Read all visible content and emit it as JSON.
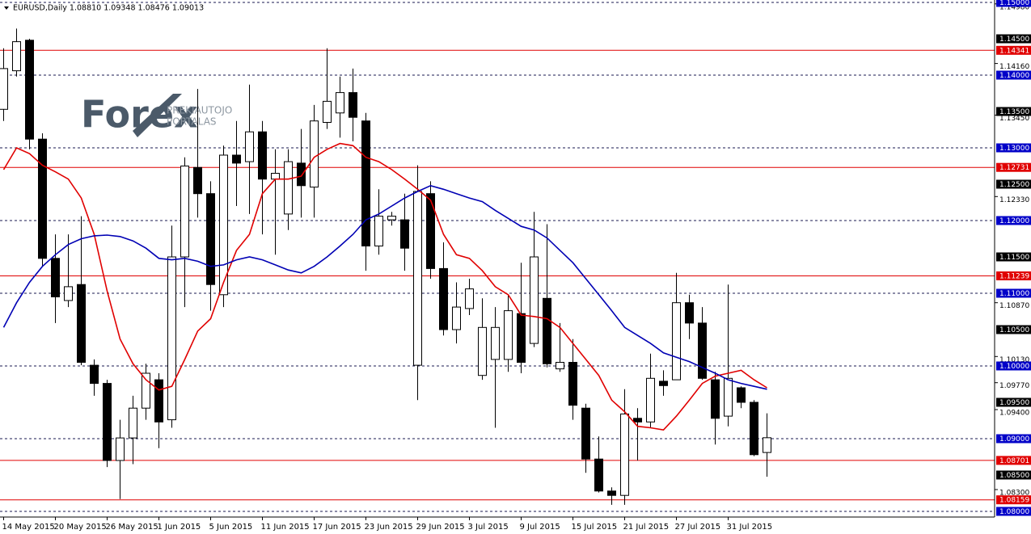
{
  "chart_data": {
    "type": "candlestick",
    "title": "EURUSD,Daily  1.08810 1.09348 1.08476 1.09013",
    "categories": [
      "14 May 2015",
      null,
      null,
      null,
      "20 May 2015",
      null,
      null,
      null,
      "26 May 2015",
      null,
      null,
      null,
      "1 Jun 2015",
      null,
      null,
      null,
      "5 Jun 2015",
      null,
      null,
      null,
      "11 Jun 2015",
      null,
      null,
      null,
      "17 Jun 2015",
      null,
      null,
      null,
      "23 Jun 2015",
      null,
      null,
      null,
      "29 Jun 2015",
      null,
      null,
      null,
      "3 Jul 2015",
      null,
      null,
      null,
      "9 Jul 2015",
      null,
      null,
      null,
      "15 Jul 2015",
      null,
      null,
      null,
      "21 Jul 2015",
      null,
      null,
      null,
      "27 Jul 2015",
      null,
      null,
      null,
      "31 Jul 2015",
      null,
      null,
      null
    ],
    "open": [
      1.1353,
      1.1406,
      1.1448,
      1.1312,
      1.1148,
      1.109,
      1.1112,
      1.1001,
      1.0976,
      1.087,
      1.0901,
      1.0942,
      1.0981,
      1.0926,
      1.115,
      1.1273,
      1.1237,
      1.1098,
      1.129,
      1.1281,
      1.1322,
      1.1257,
      1.1209,
      1.1279,
      1.1246,
      1.1335,
      1.1348,
      1.1376,
      1.1337,
      1.1165,
      1.1201,
      1.1201,
      1.1001,
      1.1237,
      1.1134,
      1.105,
      1.1079,
      1.0987,
      1.1009,
      1.1009,
      1.1072,
      1.1031,
      1.1093,
      1.0996,
      1.1005,
      1.0942,
      1.0872,
      1.0828,
      1.0822,
      1.0928,
      1.0923,
      1.0979,
      1.0981,
      1.1087,
      1.1059,
      1.0981,
      1.0931,
      1.097,
      1.095,
      1.0881
    ],
    "high": [
      1.1437,
      1.1464,
      1.145,
      1.132,
      1.1181,
      1.1181,
      1.1206,
      1.1009,
      1.0981,
      1.0926,
      1.0959,
      1.1003,
      1.099,
      1.1193,
      1.1287,
      1.1381,
      1.1254,
      1.1303,
      1.1337,
      1.1387,
      1.1337,
      1.1298,
      1.1298,
      1.1326,
      1.1359,
      1.1437,
      1.1398,
      1.1409,
      1.1348,
      1.1243,
      1.1212,
      1.1237,
      1.1276,
      1.1254,
      1.117,
      1.1115,
      1.112,
      1.1093,
      1.1081,
      1.1098,
      1.1142,
      1.1212,
      1.1195,
      1.1059,
      1.1037,
      1.0948,
      1.0903,
      1.0833,
      1.0968,
      1.0942,
      1.1017,
      1.0994,
      1.1128,
      1.1098,
      1.1081,
      1.0992,
      1.1112,
      1.0972,
      1.0953,
      1.09348
    ],
    "low": [
      1.1337,
      1.1398,
      1.1298,
      1.1137,
      1.1059,
      1.1081,
      1.1001,
      1.0959,
      1.0861,
      1.0817,
      1.0865,
      1.0926,
      1.0887,
      1.0915,
      1.1081,
      1.1204,
      1.1076,
      1.1081,
      1.122,
      1.1209,
      1.1181,
      1.1153,
      1.1187,
      1.1204,
      1.1204,
      1.1326,
      1.1314,
      1.1309,
      1.1131,
      1.1153,
      1.1193,
      1.1131,
      1.0953,
      1.112,
      1.1042,
      1.1031,
      1.107,
      1.0981,
      1.0915,
      1.0992,
      1.099,
      1.1026,
      1.0998,
      1.0992,
      1.0926,
      1.0853,
      1.0826,
      1.0809,
      1.0809,
      1.087,
      1.0915,
      1.0959,
      1.0981,
      1.1037,
      1.0981,
      1.0892,
      1.0917,
      1.0942,
      1.0876,
      1.08476
    ],
    "close": [
      1.1409,
      1.1446,
      1.1312,
      1.1148,
      1.1095,
      1.1109,
      1.1005,
      1.0976,
      1.087,
      1.0901,
      1.0942,
      1.099,
      1.0923,
      1.115,
      1.1275,
      1.1237,
      1.1112,
      1.129,
      1.1279,
      1.1322,
      1.1257,
      1.1265,
      1.1281,
      1.1248,
      1.1337,
      1.1364,
      1.1376,
      1.1342,
      1.1165,
      1.1206,
      1.1206,
      1.1162,
      1.124,
      1.1134,
      1.105,
      1.1081,
      1.1106,
      1.1053,
      1.1053,
      1.1076,
      1.1005,
      1.115,
      1.1003,
      1.1005,
      1.0946,
      1.0872,
      1.0828,
      1.0822,
      1.0934,
      1.0923,
      1.0983,
      1.0973,
      1.1087,
      1.1059,
      1.0983,
      1.0928,
      1.0983,
      1.095,
      1.0878,
      1.09013
    ],
    "up_color": "#ffffff",
    "down_color": "#000000",
    "lines": [
      {
        "color": "#e00000",
        "values": [
          1.127,
          1.13,
          1.1292,
          1.1276,
          1.1267,
          1.1257,
          1.1231,
          1.1181,
          1.1103,
          1.1037,
          1.1003,
          1.0981,
          1.0967,
          1.0972,
          1.1009,
          1.1048,
          1.1065,
          1.1115,
          1.1159,
          1.1181,
          1.1237,
          1.1257,
          1.1257,
          1.1261,
          1.1287,
          1.1298,
          1.1306,
          1.1303,
          1.1287,
          1.1281,
          1.127,
          1.1257,
          1.1243,
          1.1228,
          1.1181,
          1.1153,
          1.1148,
          1.1131,
          1.1109,
          1.1098,
          1.107,
          1.1068,
          1.1065,
          1.1053,
          1.1031,
          1.1009,
          1.0987,
          1.0953,
          1.0937,
          1.0917,
          1.0915,
          1.0912,
          1.0931,
          1.0953,
          1.0976,
          1.0986,
          1.099,
          1.0994,
          1.0981,
          1.097
        ]
      },
      {
        "color": "#0000b4",
        "values": [
          1.1053,
          1.1087,
          1.1115,
          1.1137,
          1.1153,
          1.1167,
          1.1175,
          1.1179,
          1.118,
          1.1178,
          1.1172,
          1.1162,
          1.1148,
          1.1146,
          1.1148,
          1.1144,
          1.1137,
          1.1139,
          1.1146,
          1.115,
          1.1146,
          1.1139,
          1.1132,
          1.1128,
          1.1137,
          1.115,
          1.1165,
          1.1181,
          1.1201,
          1.1209,
          1.122,
          1.1231,
          1.124,
          1.1248,
          1.1243,
          1.1237,
          1.1231,
          1.1226,
          1.1214,
          1.1203,
          1.1192,
          1.1187,
          1.1176,
          1.1159,
          1.1142,
          1.112,
          1.1098,
          1.1076,
          1.1053,
          1.1042,
          1.1031,
          1.1018,
          1.1012,
          1.1006,
          1.0998,
          1.099,
          1.0981,
          1.0976,
          1.0972,
          1.0968
        ]
      }
    ],
    "levels": [
      {
        "value": 1.15,
        "label": "1.15000",
        "color": "#0000c8",
        "line": "dashed"
      },
      {
        "value": 1.145,
        "label": "1.14500",
        "color": "#000000",
        "line": "none"
      },
      {
        "value": 1.14341,
        "label": "1.14341",
        "color": "#e00000",
        "line": "solid"
      },
      {
        "value": 1.14,
        "label": "1.14000",
        "color": "#0000c8",
        "line": "dashed"
      },
      {
        "value": 1.135,
        "label": "1.13500",
        "color": "#000000",
        "line": "none"
      },
      {
        "value": 1.13,
        "label": "1.13000",
        "color": "#0000c8",
        "line": "dashed"
      },
      {
        "value": 1.12731,
        "label": "1.12731",
        "color": "#e00000",
        "line": "solid"
      },
      {
        "value": 1.125,
        "label": "1.12500",
        "color": "#000000",
        "line": "none"
      },
      {
        "value": 1.12,
        "label": "1.12000",
        "color": "#0000c8",
        "line": "dashed"
      },
      {
        "value": 1.115,
        "label": "1.11500",
        "color": "#000000",
        "line": "none"
      },
      {
        "value": 1.11239,
        "label": "1.11239",
        "color": "#e00000",
        "line": "solid"
      },
      {
        "value": 1.11,
        "label": "1.11000",
        "color": "#0000c8",
        "line": "dashed"
      },
      {
        "value": 1.105,
        "label": "1.10500",
        "color": "#000000",
        "line": "none"
      },
      {
        "value": 1.1,
        "label": "1.10000",
        "color": "#0000c8",
        "line": "dashed"
      },
      {
        "value": 1.095,
        "label": "1.09500",
        "color": "#000000",
        "line": "none"
      },
      {
        "value": 1.09,
        "label": "1.09000",
        "color": "#0000c8",
        "line": "dashed"
      },
      {
        "value": 1.08701,
        "label": "1.08701",
        "color": "#e00000",
        "line": "solid"
      },
      {
        "value": 1.085,
        "label": "1.08500",
        "color": "#000000",
        "line": "none"
      },
      {
        "value": 1.08159,
        "label": "1.08159",
        "color": "#e00000",
        "line": "solid"
      },
      {
        "value": 1.08,
        "label": "1.08000",
        "color": "#0000c8",
        "line": "dashed"
      }
    ],
    "ylim": [
      1.08,
      1.15
    ],
    "yticks": [
      {
        "value": 1.1498,
        "label": "1.14980"
      },
      {
        "value": 1.1416,
        "label": "1.14160"
      },
      {
        "value": 1.1345,
        "label": "1.13450"
      },
      {
        "value": 1.1233,
        "label": "1.12330"
      },
      {
        "value": 1.1087,
        "label": "1.10870"
      },
      {
        "value": 1.1013,
        "label": "1.10130"
      },
      {
        "value": 1.0977,
        "label": "1.09770"
      },
      {
        "value": 1.094,
        "label": "1.09400"
      },
      {
        "value": 1.083,
        "label": "1.08300"
      }
    ],
    "watermark": {
      "brand": "Forex",
      "line1": "PREKIAUTOJO",
      "line2": "PORTALAS"
    }
  }
}
